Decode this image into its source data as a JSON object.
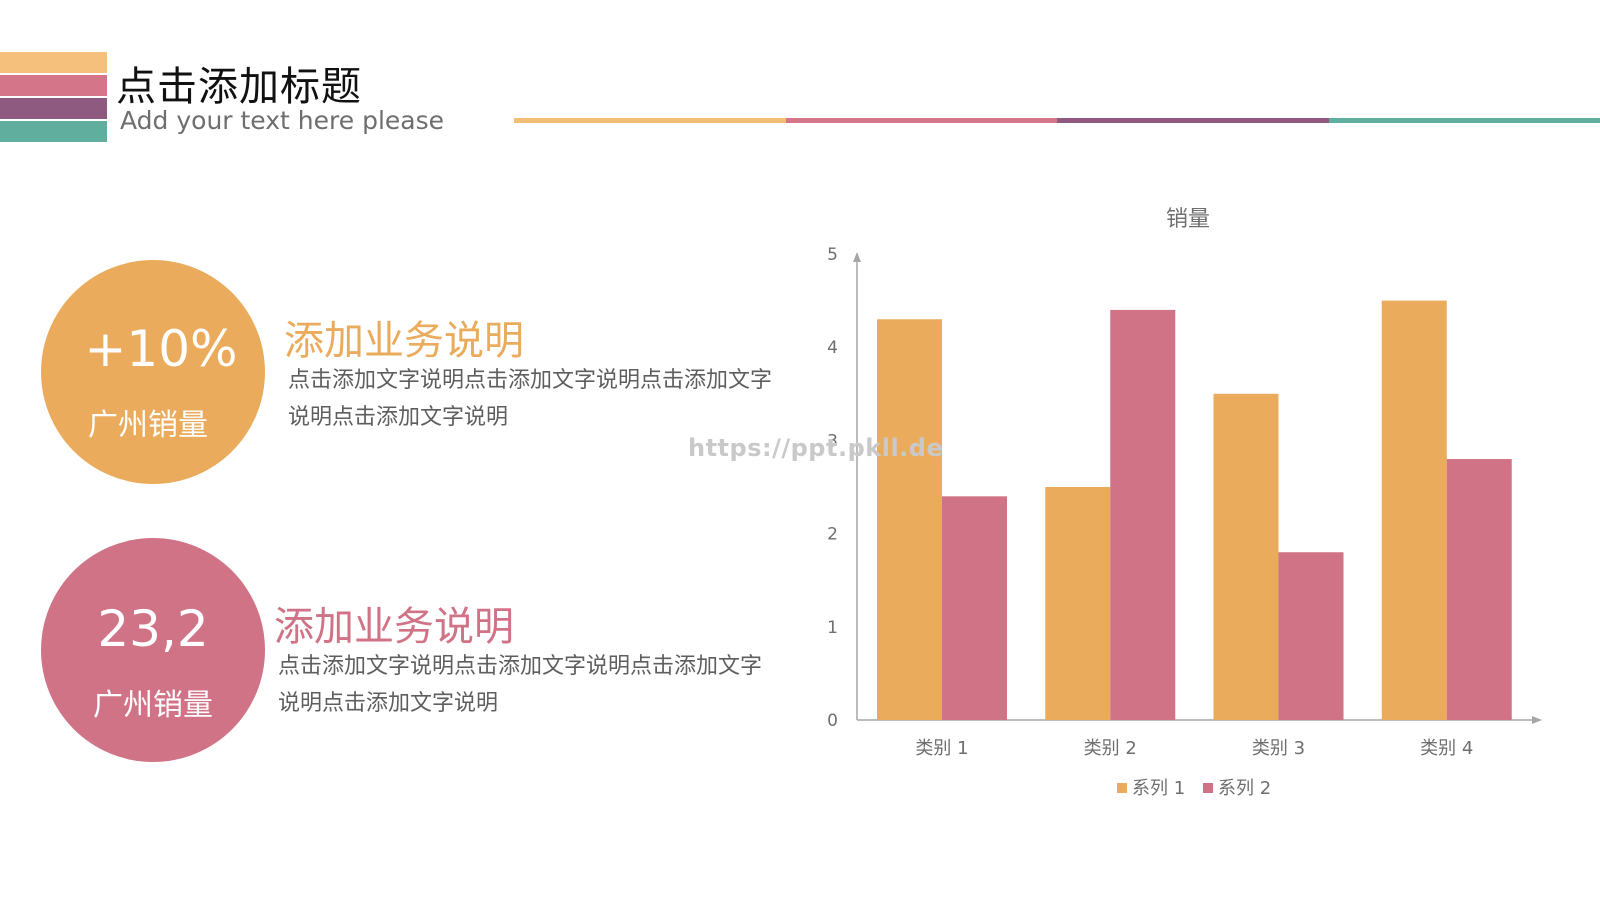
{
  "header": {
    "title": "点击添加标题",
    "subtitle": "Add your text here please"
  },
  "stats": [
    {
      "value": "+10%",
      "label": "广州销量",
      "heading": "添加业务说明",
      "text": "点击添加文字说明点击添加文字说明点击添加文字说明点击添加文字说明"
    },
    {
      "value": "23,2",
      "label": "广州销量",
      "heading": "添加业务说明",
      "text": "点击添加文字说明点击添加文字说明点击添加文字说明点击添加文字说明"
    }
  ],
  "watermark": "https://ppt.pkll.de",
  "colors": {
    "series1": "#eaac5c",
    "series2": "#d07387",
    "axis": "#a6a6a6",
    "text": "#6e6e6e"
  },
  "chart_data": {
    "type": "bar",
    "title": "销量",
    "categories": [
      "类别 1",
      "类别 2",
      "类别 3",
      "类别 4"
    ],
    "series": [
      {
        "name": "系列 1",
        "values": [
          4.3,
          2.5,
          3.5,
          4.5
        ]
      },
      {
        "name": "系列 2",
        "values": [
          2.4,
          4.4,
          1.8,
          2.8
        ]
      }
    ],
    "ylim": [
      0,
      5
    ],
    "yticks": [
      "0",
      "1",
      "2",
      "3",
      "4",
      "5"
    ],
    "grid": false,
    "legend": "bottom"
  }
}
